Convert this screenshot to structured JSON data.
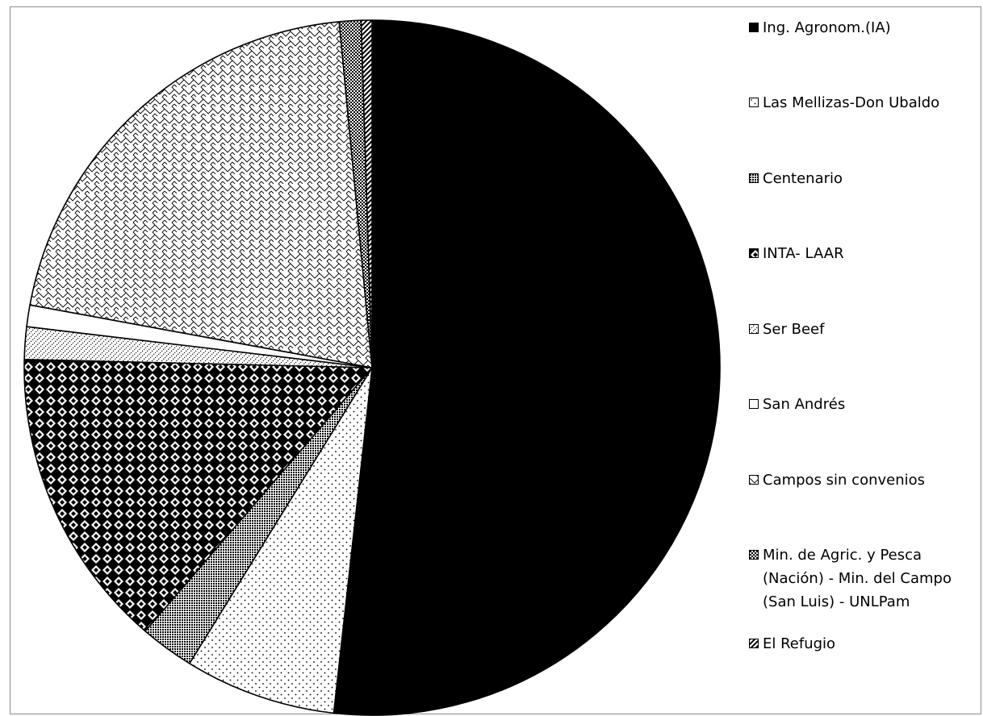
{
  "chart_data": {
    "type": "pie",
    "title": "",
    "legend_position": "right",
    "series": [
      {
        "values": [
          51.5,
          7.0,
          2.5,
          14.0,
          1.5,
          1.0,
          20.5,
          1.0,
          0.5
        ]
      }
    ],
    "slices": [
      {
        "label": "Ing. Agronom.(IA)",
        "value": 51.5,
        "pattern": "solid-black"
      },
      {
        "label": "Las Mellizas-Don Ubaldo",
        "value": 7.0,
        "pattern": "sparse-dots"
      },
      {
        "label": "Centenario",
        "value": 2.5,
        "pattern": "dense-grid"
      },
      {
        "label": "INTA- LAAR",
        "value": 14.0,
        "pattern": "large-checker"
      },
      {
        "label": "Ser Beef",
        "value": 1.5,
        "pattern": "dotted-diagonal"
      },
      {
        "label": "San Andrés",
        "value": 1.0,
        "pattern": "white"
      },
      {
        "label": "Campos sin convenios",
        "value": 20.5,
        "pattern": "zigzag"
      },
      {
        "label": "Min. de Agric. y Pesca\n(Nación) - Min. del Campo\n(San Luis) - UNLPam",
        "value": 1.0,
        "pattern": "small-checker"
      },
      {
        "label": "El Refugio",
        "value": 0.5,
        "pattern": "wide-diagonal"
      }
    ]
  }
}
